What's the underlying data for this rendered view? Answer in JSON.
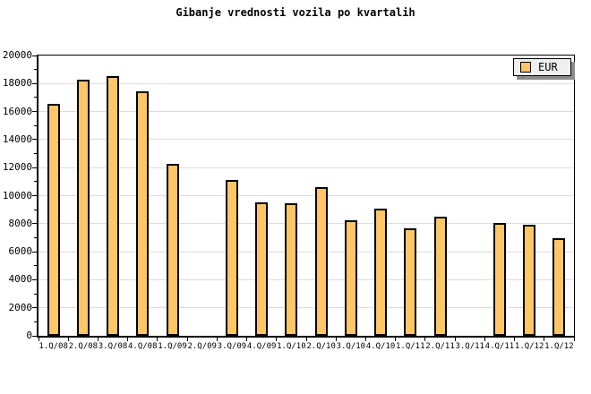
{
  "title": "Gibanje vrednosti vozila po kvartalih",
  "legend": {
    "label": "EUR",
    "position": "top-right"
  },
  "colors": {
    "background": "#FFFFFF",
    "bar_fill": "#FDC666",
    "bar_border": "#000000",
    "grid": "#DCDCDC",
    "axis": "#000000",
    "text": "#000000",
    "legend_bg": "#EFEFEF",
    "legend_shadow": "#8C8C8C"
  },
  "chart_data": {
    "type": "bar",
    "title": "Gibanje vrednosti vozila po kvartalih",
    "xlabel": "",
    "ylabel": "",
    "categories": [
      "1.Q/08",
      "2.Q/08",
      "3.Q/08",
      "4.Q/08",
      "1.Q/09",
      "2.Q/09",
      "3.Q/09",
      "4.Q/09",
      "1.Q/10",
      "2.Q/10",
      "3.Q/10",
      "4.Q/10",
      "1.Q/11",
      "2.Q/11",
      "3.Q/11",
      "4.Q/11",
      "1.Q/12",
      "1.Q/12"
    ],
    "series": [
      {
        "name": "EUR",
        "values": [
          16550,
          18250,
          18500,
          17450,
          12300,
          null,
          11100,
          9550,
          9450,
          10600,
          8250,
          9100,
          7700,
          8500,
          null,
          8050,
          7950,
          6950
        ]
      }
    ],
    "ylim": [
      0,
      20000
    ],
    "ytick_major": 2000,
    "ytick_minor": 1000,
    "yticklabels": [
      "0",
      "2000",
      "4000",
      "6000",
      "8000",
      "10000",
      "12000",
      "14000",
      "16000",
      "18000",
      "20000"
    ],
    "grid": "horizontal major gridlines on, vertical off",
    "legend_position": "top-right"
  }
}
